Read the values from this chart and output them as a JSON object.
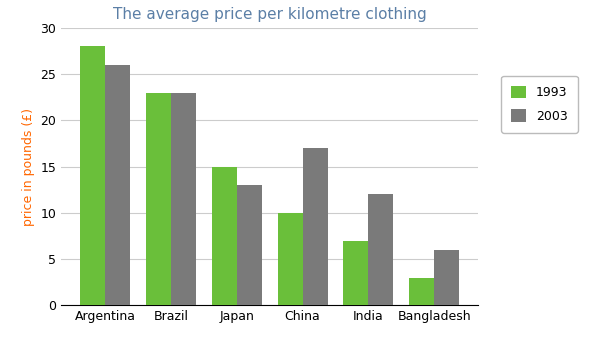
{
  "title": "The average price per kilometre clothing",
  "title_color": "#5B7FA6",
  "ylabel": "price in pounds (£)",
  "ylabel_color": "#FF6600",
  "categories": [
    "Argentina",
    "Brazil",
    "Japan",
    "China",
    "India",
    "Bangladesh"
  ],
  "values_1993": [
    28,
    23,
    15,
    10,
    7,
    3
  ],
  "values_2003": [
    26,
    23,
    13,
    17,
    12,
    6
  ],
  "color_1993": "#6ABF3A",
  "color_2003": "#7A7A7A",
  "ylim": [
    0,
    30
  ],
  "yticks": [
    0,
    5,
    10,
    15,
    20,
    25,
    30
  ],
  "legend_labels": [
    "1993",
    "2003"
  ],
  "bar_width": 0.38,
  "background_color": "#FFFFFF",
  "grid_color": "#CCCCCC",
  "title_fontsize": 11,
  "label_fontsize": 9,
  "tick_fontsize": 9
}
